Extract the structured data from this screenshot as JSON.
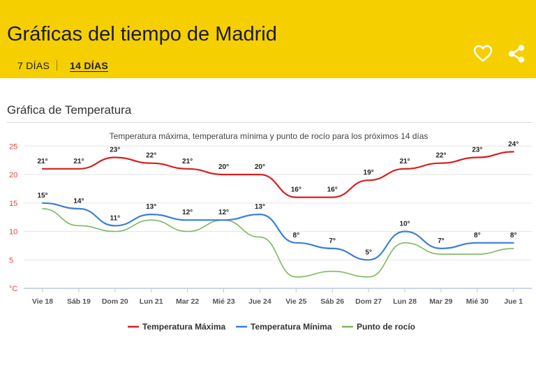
{
  "header": {
    "title": "Gráficas del tiempo de Madrid",
    "tabs": [
      {
        "label": "7 DÍAS",
        "active": false
      },
      {
        "label": "14 DÍAS",
        "active": true
      }
    ],
    "background_color": "#f5cf00",
    "icons": [
      "heart-icon",
      "share-icon"
    ]
  },
  "section": {
    "title": "Gráfica de Temperatura"
  },
  "chart_data": {
    "type": "line",
    "title": "Temperatura máxima, temperatura mínima y punto de rocío para los próximos 14 días",
    "ylabel": "°C",
    "xlabel": "",
    "ylim": [
      0,
      25
    ],
    "yticks": [
      5,
      10,
      15,
      20,
      25
    ],
    "grid": true,
    "legend_position": "bottom",
    "categories": [
      "Vie 18",
      "Sáb 19",
      "Dom 20",
      "Lun 21",
      "Mar 22",
      "Mié 23",
      "Jue 24",
      "Vie 25",
      "Sáb 26",
      "Dom 27",
      "Lun 28",
      "Mar 29",
      "Mié 30",
      "Jue 1"
    ],
    "series": [
      {
        "name": "Temperatura Máxima",
        "color": "#d81e1e",
        "labeled": true,
        "values": [
          21,
          21,
          23,
          22,
          21,
          20,
          20,
          16,
          16,
          19,
          21,
          22,
          23,
          24
        ]
      },
      {
        "name": "Temperatura Mínima",
        "color": "#3a80d8",
        "labeled": true,
        "values": [
          15,
          14,
          11,
          13,
          12,
          12,
          13,
          8,
          7,
          5,
          10,
          7,
          8,
          8
        ]
      },
      {
        "name": "Punto de rocío",
        "color": "#7cb95e",
        "labeled": false,
        "values": [
          14,
          11,
          10,
          12,
          10,
          12,
          9,
          2,
          3,
          2,
          8,
          6,
          6,
          7
        ]
      }
    ],
    "unit_suffix": "°"
  }
}
